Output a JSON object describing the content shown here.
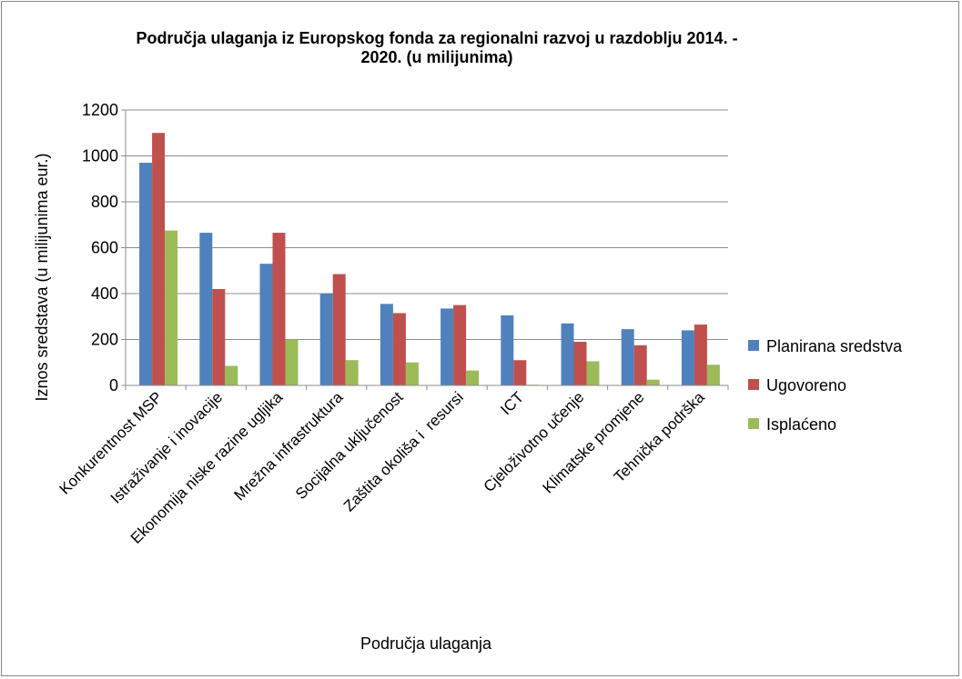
{
  "chart_data": {
    "type": "bar",
    "title": "Područja ulaganja iz Europskog fonda za regionalni razvoj u razdoblju 2014. - 2020. (u milijunima)",
    "xlabel": "Područja ulaganja",
    "ylabel": "Iznos sredstava (u milijunima eur.)",
    "categories": [
      "Konkurentnost MSP",
      "Istraživanje i inovacije",
      "Ekonomija niske razine ugljika",
      "Mrežna infrastruktura",
      "Socijalna uključenost",
      "Zaštita okoliša i  resursi",
      "ICT",
      "Cjeloživotno učenje",
      "Klimatske promjene",
      "Tehnička podrška"
    ],
    "series": [
      {
        "name": "Planirana sredstva",
        "color": "#4f81bd",
        "values": [
          970,
          665,
          530,
          400,
          355,
          335,
          305,
          270,
          245,
          240
        ]
      },
      {
        "name": "Ugovoreno",
        "color": "#c0504d",
        "values": [
          1100,
          420,
          665,
          485,
          315,
          350,
          110,
          190,
          175,
          265
        ]
      },
      {
        "name": "Isplaćeno",
        "color": "#9bbb59",
        "values": [
          675,
          85,
          200,
          110,
          100,
          65,
          3,
          105,
          25,
          90
        ]
      }
    ],
    "ylim": [
      0,
      1200
    ],
    "yticks": [
      0,
      200,
      400,
      600,
      800,
      1000,
      1200
    ],
    "grid": true,
    "legend": "right"
  }
}
